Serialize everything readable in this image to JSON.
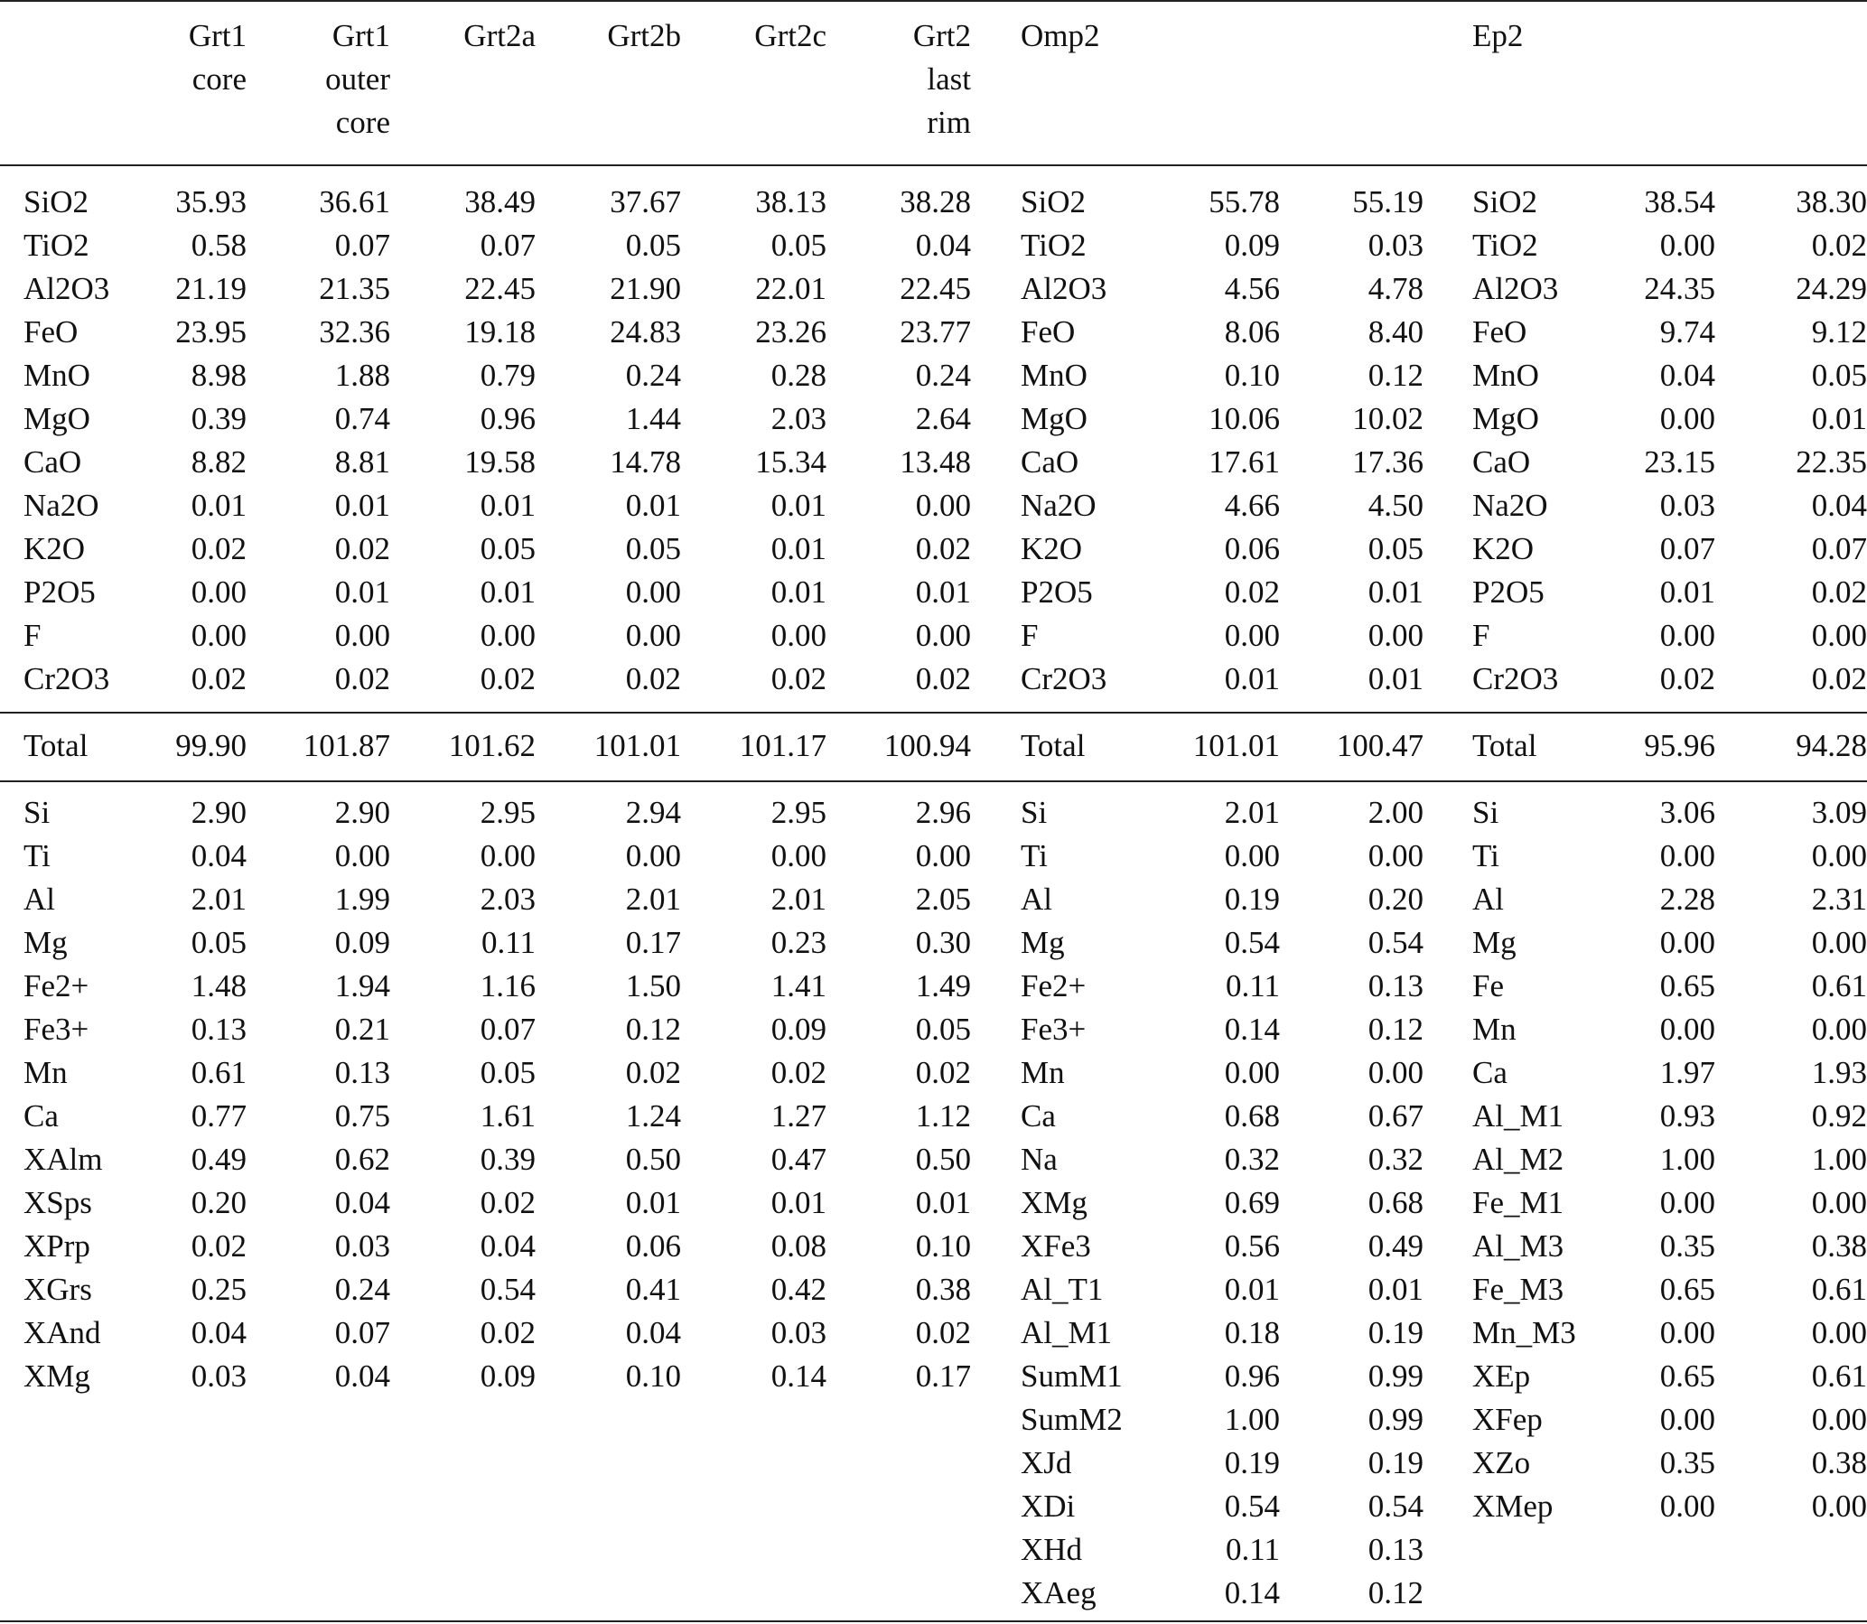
{
  "garnet": {
    "headers": [
      [
        "Grt1",
        "core",
        ""
      ],
      [
        "Grt1",
        "outer",
        "core"
      ],
      [
        "Grt2a",
        "",
        ""
      ],
      [
        "Grt2b",
        "",
        ""
      ],
      [
        "Grt2c",
        "",
        ""
      ],
      [
        "Grt2",
        "last",
        "rim"
      ]
    ],
    "oxides": [
      {
        "label": "SiO2",
        "values": [
          "35.93",
          "36.61",
          "38.49",
          "37.67",
          "38.13",
          "38.28"
        ]
      },
      {
        "label": "TiO2",
        "values": [
          "0.58",
          "0.07",
          "0.07",
          "0.05",
          "0.05",
          "0.04"
        ]
      },
      {
        "label": "Al2O3",
        "values": [
          "21.19",
          "21.35",
          "22.45",
          "21.90",
          "22.01",
          "22.45"
        ]
      },
      {
        "label": "FeO",
        "values": [
          "23.95",
          "32.36",
          "19.18",
          "24.83",
          "23.26",
          "23.77"
        ]
      },
      {
        "label": "MnO",
        "values": [
          "8.98",
          "1.88",
          "0.79",
          "0.24",
          "0.28",
          "0.24"
        ]
      },
      {
        "label": "MgO",
        "values": [
          "0.39",
          "0.74",
          "0.96",
          "1.44",
          "2.03",
          "2.64"
        ]
      },
      {
        "label": "CaO",
        "values": [
          "8.82",
          "8.81",
          "19.58",
          "14.78",
          "15.34",
          "13.48"
        ]
      },
      {
        "label": "Na2O",
        "values": [
          "0.01",
          "0.01",
          "0.01",
          "0.01",
          "0.01",
          "0.00"
        ]
      },
      {
        "label": "K2O",
        "values": [
          "0.02",
          "0.02",
          "0.05",
          "0.05",
          "0.01",
          "0.02"
        ]
      },
      {
        "label": "P2O5",
        "values": [
          "0.00",
          "0.01",
          "0.01",
          "0.00",
          "0.01",
          "0.01"
        ]
      },
      {
        "label": "F",
        "values": [
          "0.00",
          "0.00",
          "0.00",
          "0.00",
          "0.00",
          "0.00"
        ]
      },
      {
        "label": "Cr2O3",
        "values": [
          "0.02",
          "0.02",
          "0.02",
          "0.02",
          "0.02",
          "0.02"
        ]
      }
    ],
    "total": {
      "label": "Total",
      "values": [
        "99.90",
        "101.87",
        "101.62",
        "101.01",
        "101.17",
        "100.94"
      ]
    },
    "cations": [
      {
        "label": "Si",
        "values": [
          "2.90",
          "2.90",
          "2.95",
          "2.94",
          "2.95",
          "2.96"
        ]
      },
      {
        "label": "Ti",
        "values": [
          "0.04",
          "0.00",
          "0.00",
          "0.00",
          "0.00",
          "0.00"
        ]
      },
      {
        "label": "Al",
        "values": [
          "2.01",
          "1.99",
          "2.03",
          "2.01",
          "2.01",
          "2.05"
        ]
      },
      {
        "label": "Mg",
        "values": [
          "0.05",
          "0.09",
          "0.11",
          "0.17",
          "0.23",
          "0.30"
        ]
      },
      {
        "label": "Fe2+",
        "values": [
          "1.48",
          "1.94",
          "1.16",
          "1.50",
          "1.41",
          "1.49"
        ]
      },
      {
        "label": "Fe3+",
        "values": [
          "0.13",
          "0.21",
          "0.07",
          "0.12",
          "0.09",
          "0.05"
        ]
      },
      {
        "label": "Mn",
        "values": [
          "0.61",
          "0.13",
          "0.05",
          "0.02",
          "0.02",
          "0.02"
        ]
      },
      {
        "label": "Ca",
        "values": [
          "0.77",
          "0.75",
          "1.61",
          "1.24",
          "1.27",
          "1.12"
        ]
      },
      {
        "label": "XAlm",
        "values": [
          "0.49",
          "0.62",
          "0.39",
          "0.50",
          "0.47",
          "0.50"
        ]
      },
      {
        "label": "XSps",
        "values": [
          "0.20",
          "0.04",
          "0.02",
          "0.01",
          "0.01",
          "0.01"
        ]
      },
      {
        "label": "XPrp",
        "values": [
          "0.02",
          "0.03",
          "0.04",
          "0.06",
          "0.08",
          "0.10"
        ]
      },
      {
        "label": "XGrs",
        "values": [
          "0.25",
          "0.24",
          "0.54",
          "0.41",
          "0.42",
          "0.38"
        ]
      },
      {
        "label": "XAnd",
        "values": [
          "0.04",
          "0.07",
          "0.02",
          "0.04",
          "0.03",
          "0.02"
        ]
      },
      {
        "label": "XMg",
        "values": [
          "0.03",
          "0.04",
          "0.09",
          "0.10",
          "0.14",
          "0.17"
        ]
      }
    ]
  },
  "omphacite": {
    "header": "Omp2",
    "oxides": [
      {
        "label": "SiO2",
        "values": [
          "55.78",
          "55.19"
        ]
      },
      {
        "label": "TiO2",
        "values": [
          "0.09",
          "0.03"
        ]
      },
      {
        "label": "Al2O3",
        "values": [
          "4.56",
          "4.78"
        ]
      },
      {
        "label": "FeO",
        "values": [
          "8.06",
          "8.40"
        ]
      },
      {
        "label": "MnO",
        "values": [
          "0.10",
          "0.12"
        ]
      },
      {
        "label": "MgO",
        "values": [
          "10.06",
          "10.02"
        ]
      },
      {
        "label": "CaO",
        "values": [
          "17.61",
          "17.36"
        ]
      },
      {
        "label": "Na2O",
        "values": [
          "4.66",
          "4.50"
        ]
      },
      {
        "label": "K2O",
        "values": [
          "0.06",
          "0.05"
        ]
      },
      {
        "label": "P2O5",
        "values": [
          "0.02",
          "0.01"
        ]
      },
      {
        "label": "F",
        "values": [
          "0.00",
          "0.00"
        ]
      },
      {
        "label": "Cr2O3",
        "values": [
          "0.01",
          "0.01"
        ]
      }
    ],
    "total": {
      "label": "Total",
      "values": [
        "101.01",
        "100.47"
      ]
    },
    "cations": [
      {
        "label": "Si",
        "values": [
          "2.01",
          "2.00"
        ]
      },
      {
        "label": "Ti",
        "values": [
          "0.00",
          "0.00"
        ]
      },
      {
        "label": "Al",
        "values": [
          "0.19",
          "0.20"
        ]
      },
      {
        "label": "Mg",
        "values": [
          "0.54",
          "0.54"
        ]
      },
      {
        "label": "Fe2+",
        "values": [
          "0.11",
          "0.13"
        ]
      },
      {
        "label": "Fe3+",
        "values": [
          "0.14",
          "0.12"
        ]
      },
      {
        "label": "Mn",
        "values": [
          "0.00",
          "0.00"
        ]
      },
      {
        "label": "Ca",
        "values": [
          "0.68",
          "0.67"
        ]
      },
      {
        "label": "Na",
        "values": [
          "0.32",
          "0.32"
        ]
      },
      {
        "label": "XMg",
        "values": [
          "0.69",
          "0.68"
        ]
      },
      {
        "label": "XFe3",
        "values": [
          "0.56",
          "0.49"
        ]
      },
      {
        "label": "Al_T1",
        "values": [
          "0.01",
          "0.01"
        ]
      },
      {
        "label": "Al_M1",
        "values": [
          "0.18",
          "0.19"
        ]
      },
      {
        "label": "SumM1",
        "values": [
          "0.96",
          "0.99"
        ]
      },
      {
        "label": "SumM2",
        "values": [
          "1.00",
          "0.99"
        ]
      },
      {
        "label": "XJd",
        "values": [
          "0.19",
          "0.19"
        ]
      },
      {
        "label": "XDi",
        "values": [
          "0.54",
          "0.54"
        ]
      },
      {
        "label": "XHd",
        "values": [
          "0.11",
          "0.13"
        ]
      },
      {
        "label": "XAeg",
        "values": [
          "0.14",
          "0.12"
        ]
      }
    ]
  },
  "epidote": {
    "header": "Ep2",
    "oxides": [
      {
        "label": "SiO2",
        "values": [
          "38.54",
          "38.30"
        ]
      },
      {
        "label": "TiO2",
        "values": [
          "0.00",
          "0.02"
        ]
      },
      {
        "label": "Al2O3",
        "values": [
          "24.35",
          "24.29"
        ]
      },
      {
        "label": "FeO",
        "values": [
          "9.74",
          "9.12"
        ]
      },
      {
        "label": "MnO",
        "values": [
          "0.04",
          "0.05"
        ]
      },
      {
        "label": "MgO",
        "values": [
          "0.00",
          "0.01"
        ]
      },
      {
        "label": "CaO",
        "values": [
          "23.15",
          "22.35"
        ]
      },
      {
        "label": "Na2O",
        "values": [
          "0.03",
          "0.04"
        ]
      },
      {
        "label": "K2O",
        "values": [
          "0.07",
          "0.07"
        ]
      },
      {
        "label": "P2O5",
        "values": [
          "0.01",
          "0.02"
        ]
      },
      {
        "label": "F",
        "values": [
          "0.00",
          "0.00"
        ]
      },
      {
        "label": "Cr2O3",
        "values": [
          "0.02",
          "0.02"
        ]
      }
    ],
    "total": {
      "label": "Total",
      "values": [
        "95.96",
        "94.28"
      ]
    },
    "cations": [
      {
        "label": "Si",
        "values": [
          "3.06",
          "3.09"
        ]
      },
      {
        "label": "Ti",
        "values": [
          "0.00",
          "0.00"
        ]
      },
      {
        "label": "Al",
        "values": [
          "2.28",
          "2.31"
        ]
      },
      {
        "label": "Mg",
        "values": [
          "0.00",
          "0.00"
        ]
      },
      {
        "label": "Fe",
        "values": [
          "0.65",
          "0.61"
        ]
      },
      {
        "label": "Mn",
        "values": [
          "0.00",
          "0.00"
        ]
      },
      {
        "label": "Ca",
        "values": [
          "1.97",
          "1.93"
        ]
      },
      {
        "label": "Al_M1",
        "values": [
          "0.93",
          "0.92"
        ]
      },
      {
        "label": "Al_M2",
        "values": [
          "1.00",
          "1.00"
        ]
      },
      {
        "label": "Fe_M1",
        "values": [
          "0.00",
          "0.00"
        ]
      },
      {
        "label": "Al_M3",
        "values": [
          "0.35",
          "0.38"
        ]
      },
      {
        "label": "Fe_M3",
        "values": [
          "0.65",
          "0.61"
        ]
      },
      {
        "label": "Mn_M3",
        "values": [
          "0.00",
          "0.00"
        ]
      },
      {
        "label": "XEp",
        "values": [
          "0.65",
          "0.61"
        ]
      },
      {
        "label": "XFep",
        "values": [
          "0.00",
          "0.00"
        ]
      },
      {
        "label": "XZo",
        "values": [
          "0.35",
          "0.38"
        ]
      },
      {
        "label": "XMep",
        "values": [
          "0.00",
          "0.00"
        ]
      }
    ]
  }
}
